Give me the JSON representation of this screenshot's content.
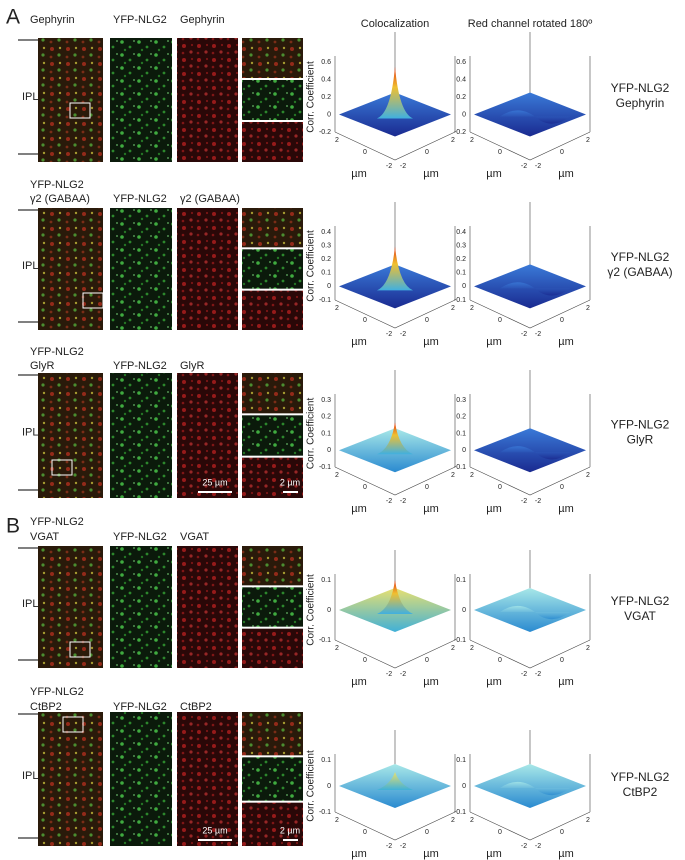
{
  "panels": [
    "A",
    "B"
  ],
  "headers": {
    "colocalization": "Colocalization",
    "rotated": "Red channel rotated 180º"
  },
  "ipl_label": "IPL",
  "z_label": "Corr. Coefficient",
  "axis_unit": "µm",
  "xy_ticks": [
    "-2",
    "0",
    "2"
  ],
  "rows": [
    {
      "merge": [
        {
          "text": "Gephyrin",
          "color": "#d0402a"
        }
      ],
      "green": "YFP-NLG2",
      "red": "Gephyrin",
      "right": [
        "YFP-NLG2",
        "Gephyrin"
      ],
      "zticks": [
        "0.6",
        "0.4",
        "0.2",
        "0",
        "-0.2"
      ]
    },
    {
      "merge": [
        {
          "text": "YFP-NLG2",
          "color": "#2a9a2a"
        },
        {
          "text": "γ2 (GABAA)",
          "color": "#d0402a"
        }
      ],
      "green": "YFP-NLG2",
      "red": "γ2 (GABAA)",
      "right": [
        "YFP-NLG2",
        "γ2 (GABAA)"
      ],
      "zticks": [
        "0.4",
        "0.3",
        "0.2",
        "0.1",
        "0",
        "-0.1"
      ]
    },
    {
      "merge": [
        {
          "text": "YFP-NLG2",
          "color": "#2a9a2a"
        },
        {
          "text": "GlyR",
          "color": "#d0402a"
        }
      ],
      "green": "YFP-NLG2",
      "red": "GlyR",
      "right": [
        "YFP-NLG2",
        "GlyR"
      ],
      "zticks": [
        "0.3",
        "0.2",
        "0.1",
        "0",
        "-0.1"
      ],
      "scale_bars": [
        "25 µm",
        "2 µm"
      ]
    },
    {
      "merge": [
        {
          "text": "YFP-NLG2",
          "color": "#2a9a2a"
        },
        {
          "text": "VGAT",
          "color": "#d0402a"
        }
      ],
      "green": "YFP-NLG2",
      "red": "VGAT",
      "right": [
        "YFP-NLG2",
        "VGAT"
      ],
      "zticks": [
        "0.1",
        "0",
        "-0.1"
      ]
    },
    {
      "merge": [
        {
          "text": "YFP-NLG2",
          "color": "#2a9a2a"
        },
        {
          "text": "CtBP2",
          "color": "#d0402a"
        }
      ],
      "green": "YFP-NLG2",
      "red": "CtBP2",
      "right": [
        "YFP-NLG2",
        "CtBP2"
      ],
      "zticks": [
        "0.1",
        "0",
        "-0.1"
      ],
      "scale_bars": [
        "25 µm",
        "2 µm"
      ]
    }
  ]
}
